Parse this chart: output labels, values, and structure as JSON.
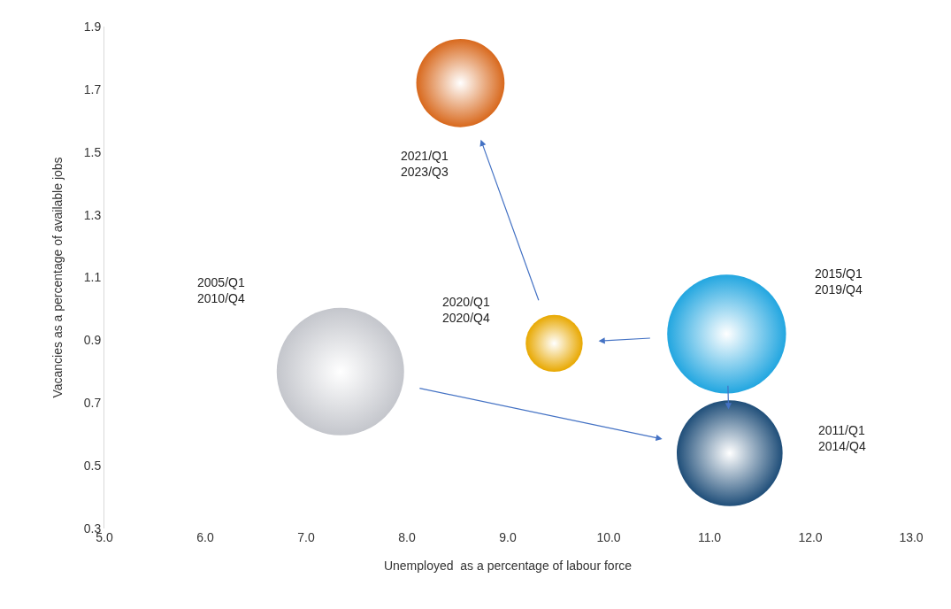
{
  "chart_data": {
    "type": "bubble",
    "xlabel": "Unemployed  as a percentage of labour force",
    "ylabel": "Vacancies as a percentage of available jobs",
    "x": [
      7.34,
      11.2,
      11.17,
      9.46,
      8.53
    ],
    "series": [
      {
        "values": [
          0.8,
          0.54,
          0.92,
          0.89,
          1.72
        ],
        "sizes": [
          1,
          0.69,
          0.87,
          0.2,
          0.48
        ],
        "colors": [
          "#c4c6cc",
          "#1f4e79",
          "#22a6e0",
          "#e8a800",
          "#d8681c"
        ]
      }
    ],
    "xlim": [
      5,
      13
    ],
    "xticks": [
      {
        "value": 5,
        "label": "5.0"
      },
      {
        "value": 6,
        "label": "6.0"
      },
      {
        "value": 7,
        "label": "7.0"
      },
      {
        "value": 8,
        "label": "8.0"
      },
      {
        "value": 9,
        "label": "9.0"
      },
      {
        "value": 10,
        "label": "10.0"
      },
      {
        "value": 11,
        "label": "11.0"
      },
      {
        "value": 12,
        "label": "12.0"
      },
      {
        "value": 13,
        "label": "13.0"
      }
    ],
    "ylim": [
      0.3,
      1.9
    ],
    "yticks": [
      0.3,
      0.5,
      0.7,
      0.9,
      1.1,
      1.3,
      1.5,
      1.7,
      1.9
    ],
    "annotations": [
      "2005/Q1\n2010/Q4",
      "2011/Q1\n2014/Q4",
      "2015/Q1\n2019/Q4",
      "2020/Q1\n2020/Q4",
      "2021/Q1\n2023/Q3"
    ]
  }
}
